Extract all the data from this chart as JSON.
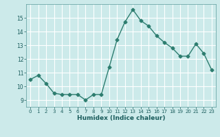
{
  "x": [
    0,
    1,
    2,
    3,
    4,
    5,
    6,
    7,
    8,
    9,
    10,
    11,
    12,
    13,
    14,
    15,
    16,
    17,
    18,
    19,
    20,
    21,
    22,
    23
  ],
  "y": [
    10.5,
    10.8,
    10.2,
    9.5,
    9.4,
    9.4,
    9.4,
    9.0,
    9.4,
    9.4,
    11.4,
    13.4,
    14.7,
    15.6,
    14.8,
    14.4,
    13.7,
    13.2,
    12.8,
    12.2,
    12.2,
    13.1,
    12.4,
    11.2
  ],
  "line_color": "#2d7d6f",
  "marker": "D",
  "marker_size": 2.5,
  "bg_color": "#cceaea",
  "grid_color": "#ffffff",
  "xlabel": "Humidex (Indice chaleur)",
  "xlim": [
    -0.5,
    23.5
  ],
  "ylim": [
    8.5,
    16.0
  ],
  "yticks": [
    9,
    10,
    11,
    12,
    13,
    14,
    15
  ],
  "xticks": [
    0,
    1,
    2,
    3,
    4,
    5,
    6,
    7,
    8,
    9,
    10,
    11,
    12,
    13,
    14,
    15,
    16,
    17,
    18,
    19,
    20,
    21,
    22,
    23
  ]
}
